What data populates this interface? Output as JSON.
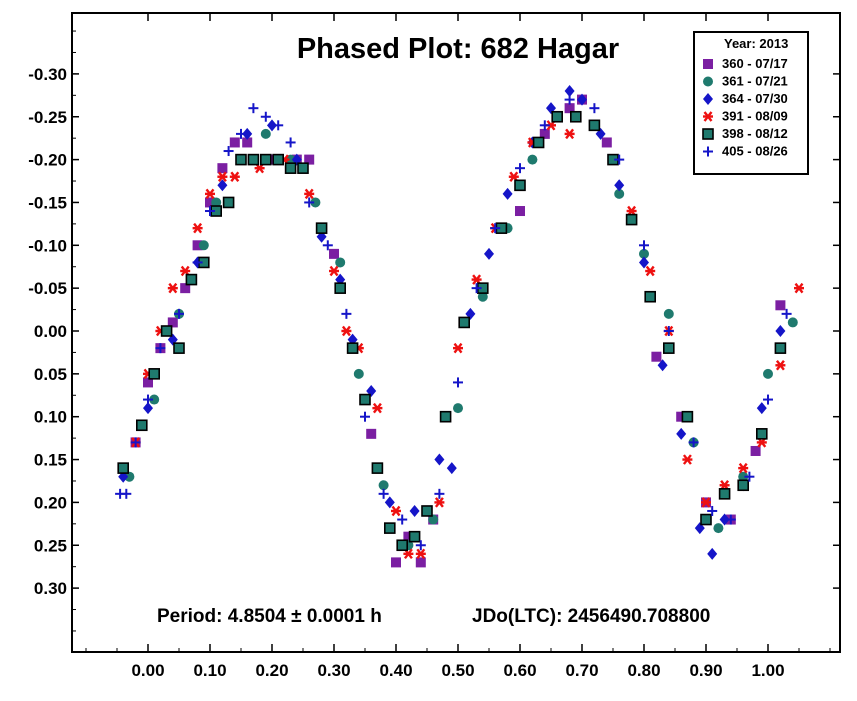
{
  "chart_data": {
    "type": "scatter",
    "title": "Phased Plot: 682 Hagar",
    "xlabel": "",
    "ylabel": "",
    "xlim": [
      -0.12,
      1.12
    ],
    "ylim": [
      -0.37,
      0.37
    ],
    "y_inverted": true,
    "x_ticks": [
      "0.00",
      "0.10",
      "0.20",
      "0.30",
      "0.40",
      "0.50",
      "0.60",
      "0.70",
      "0.80",
      "0.90",
      "1.00"
    ],
    "y_ticks": [
      "-0.30",
      "-0.25",
      "-0.20",
      "-0.15",
      "-0.10",
      "-0.05",
      "0.00",
      "0.05",
      "0.10",
      "0.15",
      "0.20",
      "0.25",
      "0.30"
    ],
    "y_tick_values": [
      -0.3,
      -0.25,
      -0.2,
      -0.15,
      -0.1,
      -0.05,
      0.0,
      0.05,
      0.1,
      0.15,
      0.2,
      0.25,
      0.3
    ],
    "x_tick_values": [
      0.0,
      0.1,
      0.2,
      0.3,
      0.4,
      0.5,
      0.6,
      0.7,
      0.8,
      0.9,
      1.0
    ],
    "legend": {
      "title": "Year: 2013",
      "placement": "top-right",
      "entries": [
        "360 - 07/17",
        "361 - 07/21",
        "364 - 07/30",
        "391 - 08/09",
        "398 - 08/12",
        "405 - 08/26"
      ]
    },
    "annotations": {
      "period": "Period: 4.8504 ± 0.0001 h",
      "epoch": "JDo(LTC): 2456490.708800"
    },
    "series": [
      {
        "name": "360 - 07/17",
        "marker": "square",
        "color": "#7B1FA2",
        "x": [
          -0.04,
          -0.02,
          0.0,
          0.02,
          0.04,
          0.06,
          0.08,
          0.1,
          0.12,
          0.14,
          0.16,
          0.2,
          0.24,
          0.26,
          0.3,
          0.36,
          0.4,
          0.42,
          0.44,
          0.46,
          0.6,
          0.64,
          0.68,
          0.7,
          0.74,
          0.78,
          0.82,
          0.86,
          0.9,
          0.94,
          0.98,
          1.02
        ],
        "y": [
          0.16,
          0.13,
          0.06,
          0.02,
          -0.01,
          -0.05,
          -0.1,
          -0.15,
          -0.19,
          -0.22,
          -0.22,
          -0.2,
          -0.2,
          -0.2,
          -0.09,
          0.12,
          0.27,
          0.24,
          0.27,
          0.22,
          -0.14,
          -0.23,
          -0.26,
          -0.27,
          -0.22,
          -0.13,
          0.03,
          0.1,
          0.2,
          0.22,
          0.14,
          -0.03
        ]
      },
      {
        "name": "361 - 07/21",
        "marker": "circle",
        "color": "#1F7A6E",
        "x": [
          -0.03,
          0.01,
          0.05,
          0.09,
          0.11,
          0.15,
          0.19,
          0.23,
          0.27,
          0.31,
          0.34,
          0.38,
          0.42,
          0.46,
          0.5,
          0.54,
          0.58,
          0.62,
          0.66,
          0.72,
          0.76,
          0.78,
          0.8,
          0.84,
          0.88,
          0.92,
          0.96,
          1.0,
          1.04
        ],
        "y": [
          0.17,
          0.08,
          -0.02,
          -0.1,
          -0.15,
          -0.2,
          -0.23,
          -0.2,
          -0.15,
          -0.08,
          0.05,
          0.18,
          0.25,
          0.22,
          0.09,
          -0.04,
          -0.12,
          -0.2,
          -0.25,
          -0.24,
          -0.16,
          -0.13,
          -0.09,
          -0.02,
          0.13,
          0.23,
          0.17,
          0.05,
          -0.01
        ]
      },
      {
        "name": "364 - 07/30",
        "marker": "diamond",
        "color": "#1515C8",
        "x": [
          -0.04,
          0.0,
          0.04,
          0.08,
          0.12,
          0.16,
          0.2,
          0.24,
          0.28,
          0.31,
          0.33,
          0.36,
          0.39,
          0.43,
          0.47,
          0.49,
          0.52,
          0.55,
          0.58,
          0.62,
          0.65,
          0.68,
          0.7,
          0.73,
          0.76,
          0.8,
          0.83,
          0.86,
          0.89,
          0.91,
          0.93,
          0.96,
          0.99,
          1.02
        ],
        "y": [
          0.17,
          0.09,
          0.01,
          -0.08,
          -0.17,
          -0.23,
          -0.24,
          -0.2,
          -0.11,
          -0.06,
          0.01,
          0.07,
          0.2,
          0.21,
          0.15,
          0.16,
          -0.02,
          -0.09,
          -0.16,
          -0.22,
          -0.26,
          -0.28,
          -0.27,
          -0.23,
          -0.17,
          -0.08,
          0.04,
          0.12,
          0.23,
          0.26,
          0.22,
          0.18,
          0.09,
          0.0
        ]
      },
      {
        "name": "391 - 08/09",
        "marker": "asterisk",
        "color": "#EE1111",
        "x": [
          -0.04,
          -0.02,
          0.0,
          0.02,
          0.04,
          0.06,
          0.08,
          0.1,
          0.12,
          0.14,
          0.18,
          0.22,
          0.26,
          0.3,
          0.32,
          0.34,
          0.37,
          0.4,
          0.42,
          0.44,
          0.47,
          0.5,
          0.53,
          0.56,
          0.59,
          0.62,
          0.65,
          0.68,
          0.72,
          0.75,
          0.78,
          0.81,
          0.84,
          0.87,
          0.9,
          0.93,
          0.96,
          0.99,
          1.02,
          1.05
        ],
        "y": [
          0.16,
          0.13,
          0.05,
          0.0,
          -0.05,
          -0.07,
          -0.12,
          -0.16,
          -0.18,
          -0.18,
          -0.19,
          -0.2,
          -0.16,
          -0.07,
          0.0,
          0.02,
          0.09,
          0.21,
          0.26,
          0.26,
          0.2,
          0.02,
          -0.06,
          -0.12,
          -0.18,
          -0.22,
          -0.24,
          -0.23,
          -0.24,
          -0.2,
          -0.14,
          -0.07,
          0.0,
          0.15,
          0.2,
          0.18,
          0.16,
          0.13,
          0.04,
          -0.05
        ]
      },
      {
        "name": "398 - 08/12",
        "marker": "square-outline",
        "color": "#1F7A6E",
        "x": [
          -0.04,
          -0.01,
          0.01,
          0.03,
          0.05,
          0.07,
          0.09,
          0.11,
          0.13,
          0.15,
          0.17,
          0.19,
          0.21,
          0.23,
          0.25,
          0.28,
          0.31,
          0.33,
          0.35,
          0.37,
          0.39,
          0.41,
          0.43,
          0.45,
          0.48,
          0.51,
          0.54,
          0.57,
          0.6,
          0.63,
          0.66,
          0.69,
          0.72,
          0.75,
          0.78,
          0.81,
          0.84,
          0.87,
          0.9,
          0.93,
          0.96,
          0.99,
          1.02
        ],
        "y": [
          0.16,
          0.11,
          0.05,
          0.0,
          0.02,
          -0.06,
          -0.08,
          -0.14,
          -0.15,
          -0.2,
          -0.2,
          -0.2,
          -0.2,
          -0.19,
          -0.19,
          -0.12,
          -0.05,
          0.02,
          0.08,
          0.16,
          0.23,
          0.25,
          0.24,
          0.21,
          0.1,
          -0.01,
          -0.05,
          -0.12,
          -0.17,
          -0.22,
          -0.25,
          -0.25,
          -0.24,
          -0.2,
          -0.13,
          -0.04,
          0.02,
          0.1,
          0.22,
          0.19,
          0.18,
          0.12,
          0.02
        ]
      },
      {
        "name": "405 - 08/26",
        "marker": "plus",
        "color": "#1515C8",
        "x": [
          -0.045,
          -0.035,
          -0.02,
          0.0,
          0.02,
          0.05,
          0.08,
          0.1,
          0.13,
          0.15,
          0.17,
          0.19,
          0.21,
          0.23,
          0.26,
          0.29,
          0.32,
          0.35,
          0.38,
          0.41,
          0.44,
          0.47,
          0.5,
          0.53,
          0.56,
          0.6,
          0.64,
          0.68,
          0.72,
          0.76,
          0.8,
          0.84,
          0.88,
          0.91,
          0.94,
          0.97,
          1.0,
          1.03
        ],
        "y": [
          0.19,
          0.19,
          0.13,
          0.08,
          0.02,
          -0.02,
          -0.08,
          -0.14,
          -0.21,
          -0.23,
          -0.26,
          -0.25,
          -0.24,
          -0.22,
          -0.15,
          -0.1,
          -0.02,
          0.1,
          0.19,
          0.22,
          0.25,
          0.19,
          0.06,
          -0.05,
          -0.12,
          -0.19,
          -0.24,
          -0.27,
          -0.26,
          -0.2,
          -0.1,
          0.0,
          0.13,
          0.21,
          0.22,
          0.17,
          0.08,
          -0.02
        ]
      }
    ]
  }
}
